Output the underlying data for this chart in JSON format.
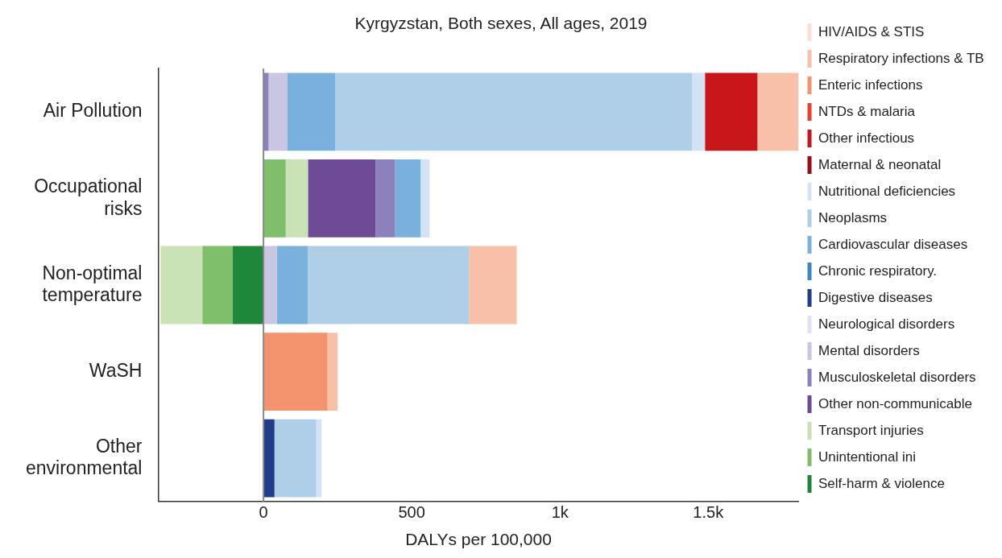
{
  "chart_data": {
    "type": "bar",
    "orientation": "horizontal",
    "stacked": true,
    "title": "Kyrgyzstan, Both sexes, All ages, 2019",
    "xlabel": "DALYs per 100,000",
    "categories": [
      "Air Pollution",
      "Occupational risks",
      "Non-optimal temperature",
      "WaSH",
      "Other environmental"
    ],
    "xlim": [
      -355,
      1805
    ],
    "xticks": [
      0,
      500,
      {
        "value": 1000,
        "label": "1k"
      },
      {
        "value": 1500,
        "label": "1.5k"
      }
    ],
    "grid": false,
    "legend": "right",
    "ref_lines": [
      {
        "axis": "x",
        "value": 0,
        "color": "#888888"
      }
    ],
    "series": [
      {
        "name": "Self-harm & violence",
        "color": "#1f8739",
        "values": [
          null,
          null,
          -104,
          null,
          null
        ]
      },
      {
        "name": "Unintentional ini",
        "color": "#80bf6a",
        "values": [
          null,
          75,
          -102,
          null,
          null
        ]
      },
      {
        "name": "Transport injuries",
        "color": "#c9e3b7",
        "values": [
          null,
          75,
          -141,
          null,
          null
        ]
      },
      {
        "name": "Other non-communicable",
        "color": "#6e4a97",
        "values": [
          null,
          228,
          null,
          null,
          null
        ]
      },
      {
        "name": "Musculoskeletal disorders",
        "color": "#8a81bd",
        "values": [
          17,
          66,
          null,
          null,
          null
        ]
      },
      {
        "name": "Mental disorders",
        "color": "#c9c6e3",
        "values": [
          64,
          null,
          45,
          null,
          null
        ]
      },
      {
        "name": "Neurological disorders",
        "color": "#e2e1f0",
        "values": [
          null,
          null,
          null,
          null,
          null
        ]
      },
      {
        "name": "Digestive diseases",
        "color": "#1f3d88",
        "values": [
          null,
          null,
          null,
          null,
          37
        ]
      },
      {
        "name": "Chronic respiratory.",
        "color": "#3a87c2",
        "values": [
          null,
          null,
          null,
          null,
          null
        ]
      },
      {
        "name": "Cardiovascular diseases",
        "color": "#77b1dc",
        "values": [
          161,
          86,
          105,
          null,
          null
        ]
      },
      {
        "name": "Neoplasms",
        "color": "#aecfe7",
        "values": [
          1203,
          null,
          543,
          null,
          141
        ]
      },
      {
        "name": "Nutritional deficiencies",
        "color": "#d3e2f4",
        "values": [
          44,
          30,
          null,
          null,
          18
        ]
      },
      {
        "name": "Maternal & neonatal",
        "color": "#9b0d14",
        "values": [
          null,
          null,
          null,
          null,
          null
        ]
      },
      {
        "name": "Other infectious",
        "color": "#c8161a",
        "values": [
          177,
          null,
          null,
          null,
          null
        ]
      },
      {
        "name": "NTDs & malaria",
        "color": "#e8412d",
        "values": [
          null,
          null,
          null,
          null,
          null
        ]
      },
      {
        "name": "Enteric infections",
        "color": "#f4946f",
        "values": [
          null,
          null,
          null,
          216,
          null
        ]
      },
      {
        "name": "Respiratory infections & TB",
        "color": "#f8c0a8",
        "values": [
          139,
          null,
          161,
          34,
          null
        ]
      },
      {
        "name": "HIV/AIDS & STIS",
        "color": "#fde0d2",
        "values": [
          null,
          null,
          null,
          null,
          null
        ]
      }
    ]
  }
}
